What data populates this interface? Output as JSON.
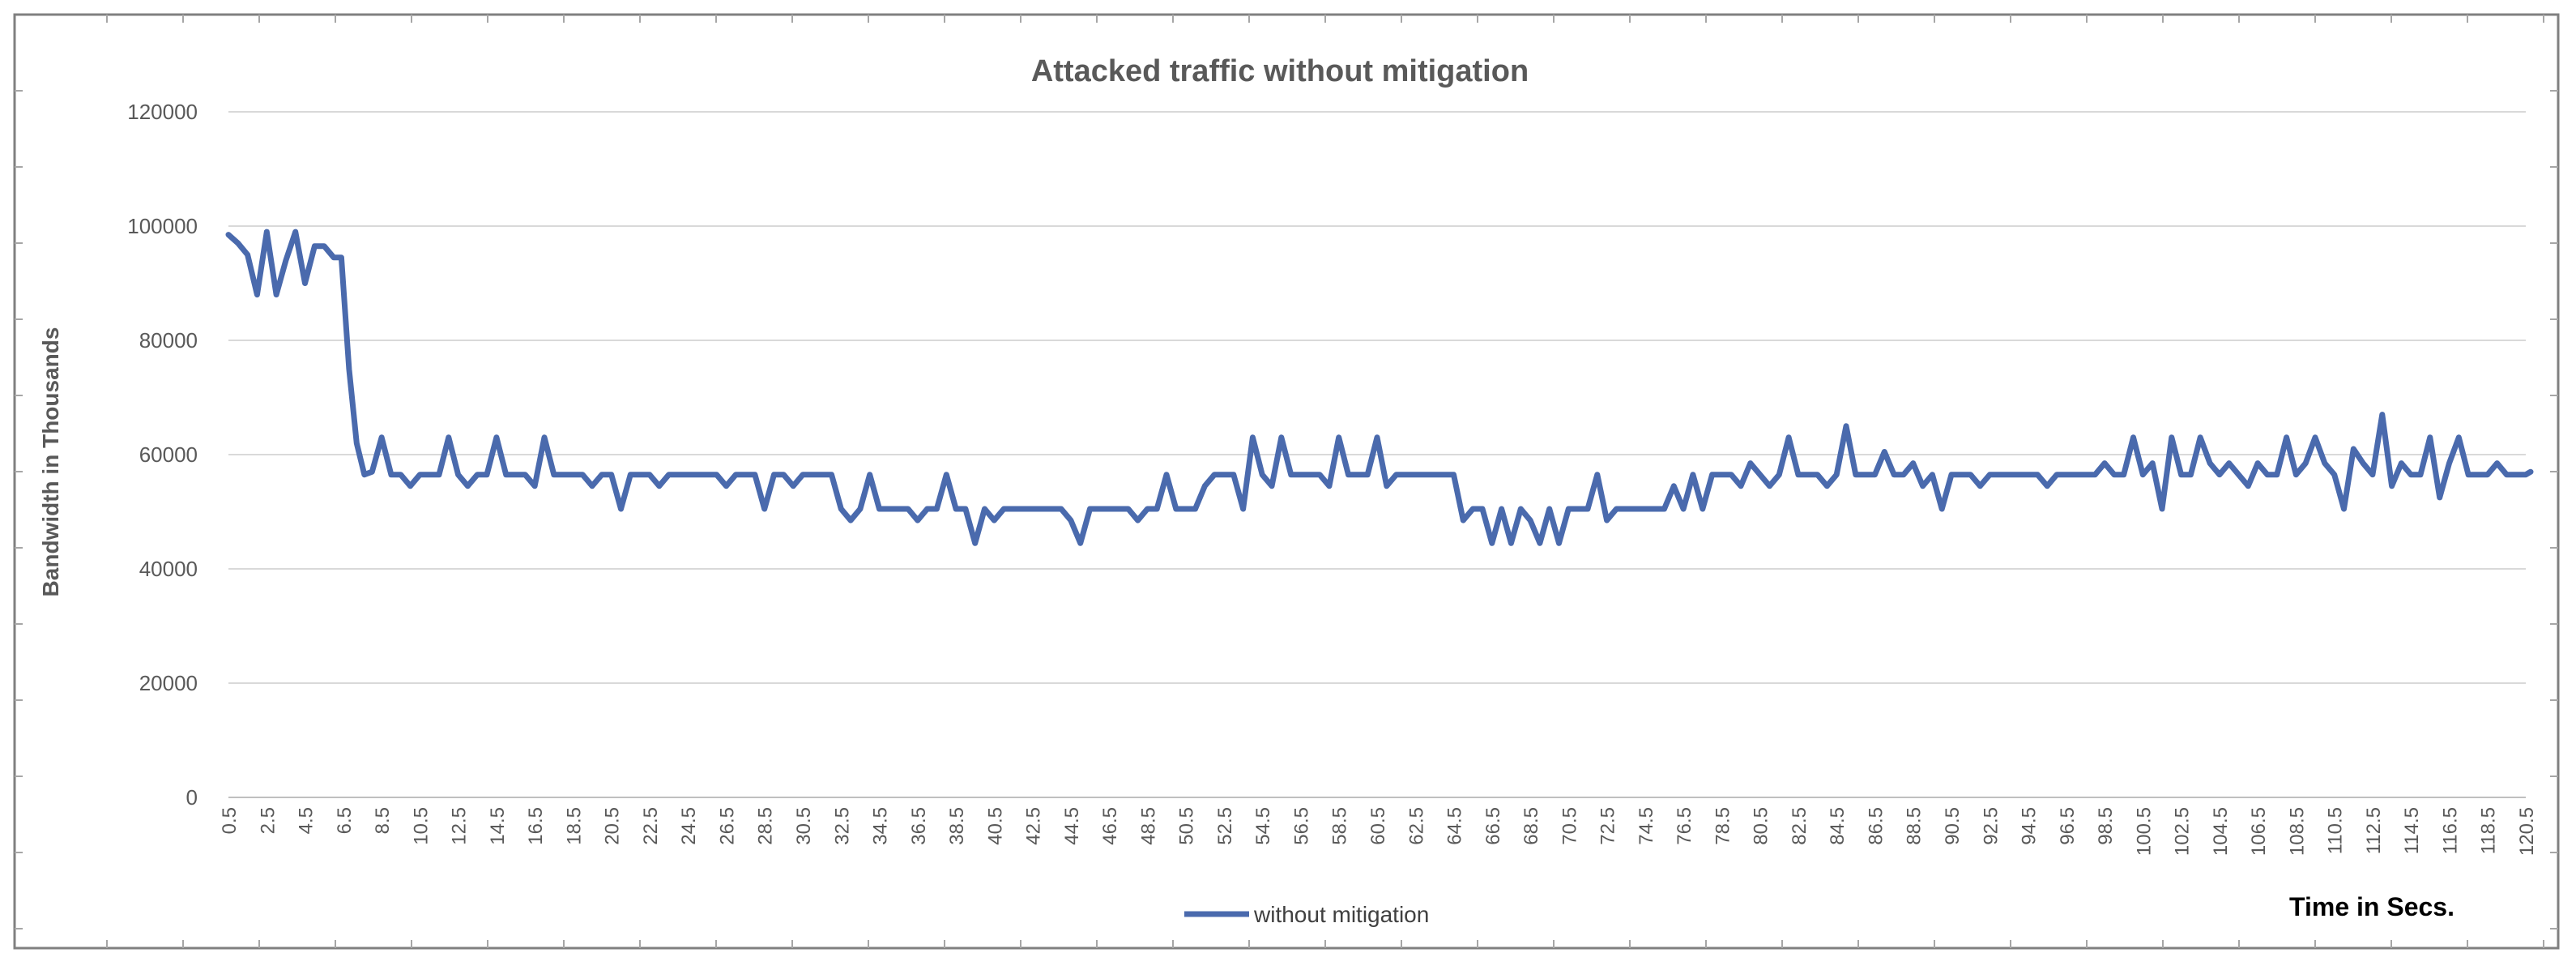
{
  "chart_data": {
    "type": "line",
    "title": "Attacked traffic without mitigation",
    "xlabel": "Time in Secs.",
    "ylabel": "Bandwidth in Thousands",
    "ylim": [
      0,
      120000
    ],
    "yticks": [
      0,
      20000,
      40000,
      60000,
      80000,
      100000,
      120000
    ],
    "grid": true,
    "legend_position": "bottom",
    "x_start": 0.5,
    "x_step": 0.5,
    "x_end": 120.5,
    "x_tick_labels": [
      "0.5",
      "2.5",
      "4.5",
      "6.5",
      "8.5",
      "10.5",
      "12.5",
      "14.5",
      "16.5",
      "18.5",
      "20.5",
      "22.5",
      "24.5",
      "26.5",
      "28.5",
      "30.5",
      "32.5",
      "34.5",
      "36.5",
      "38.5",
      "40.5",
      "42.5",
      "44.5",
      "46.5",
      "48.5",
      "50.5",
      "52.5",
      "54.5",
      "56.5",
      "58.5",
      "60.5",
      "62.5",
      "64.5",
      "66.5",
      "68.5",
      "70.5",
      "72.5",
      "74.5",
      "76.5",
      "78.5",
      "80.5",
      "82.5",
      "84.5",
      "86.5",
      "88.5",
      "90.5",
      "92.5",
      "94.5",
      "96.5",
      "98.5",
      "100.5",
      "102.5",
      "104.5",
      "106.5",
      "108.5",
      "110.5",
      "112.5",
      "114.5",
      "116.5",
      "118.5",
      "120.5"
    ],
    "series": [
      {
        "name": "without mitigation",
        "color": "#4a6aad",
        "anchors": [
          [
            0.5,
            98500
          ],
          [
            1.0,
            97000
          ],
          [
            1.5,
            95000
          ],
          [
            2.0,
            88000
          ],
          [
            2.5,
            99000
          ],
          [
            3.0,
            88000
          ],
          [
            3.5,
            94000
          ],
          [
            4.0,
            99000
          ],
          [
            4.5,
            90000
          ],
          [
            5.0,
            96500
          ],
          [
            5.5,
            96500
          ],
          [
            6.0,
            94500
          ],
          [
            6.4,
            94500
          ],
          [
            6.8,
            75000
          ],
          [
            7.2,
            62000
          ],
          [
            7.6,
            56500
          ],
          [
            8.0,
            57000
          ],
          [
            8.5,
            63000
          ],
          [
            9.0,
            56500
          ],
          [
            9.5,
            56500
          ],
          [
            10.0,
            54500
          ],
          [
            10.5,
            56500
          ],
          [
            11.0,
            56500
          ],
          [
            11.5,
            56500
          ],
          [
            12.0,
            63000
          ],
          [
            12.5,
            56500
          ],
          [
            13.0,
            54500
          ],
          [
            13.5,
            56500
          ],
          [
            14.0,
            56500
          ],
          [
            14.5,
            63000
          ],
          [
            15.0,
            56500
          ],
          [
            15.5,
            56500
          ],
          [
            16.0,
            56500
          ],
          [
            16.5,
            54500
          ],
          [
            17.0,
            63000
          ],
          [
            17.5,
            56500
          ],
          [
            18.0,
            56500
          ],
          [
            18.5,
            56500
          ],
          [
            19.0,
            56500
          ],
          [
            19.5,
            54500
          ],
          [
            20.0,
            56500
          ],
          [
            20.5,
            56500
          ],
          [
            21.0,
            50500
          ],
          [
            21.5,
            56500
          ],
          [
            22.0,
            56500
          ],
          [
            22.5,
            56500
          ],
          [
            23.0,
            54500
          ],
          [
            23.5,
            56500
          ],
          [
            24.0,
            56500
          ],
          [
            24.5,
            56500
          ],
          [
            25.0,
            56500
          ],
          [
            25.5,
            56500
          ],
          [
            26.0,
            56500
          ],
          [
            26.5,
            54500
          ],
          [
            27.0,
            56500
          ],
          [
            27.5,
            56500
          ],
          [
            28.0,
            56500
          ],
          [
            28.5,
            50500
          ],
          [
            29.0,
            56500
          ],
          [
            29.5,
            56500
          ],
          [
            30.0,
            54500
          ],
          [
            30.5,
            56500
          ],
          [
            31.0,
            56500
          ],
          [
            31.5,
            56500
          ],
          [
            32.0,
            56500
          ],
          [
            32.5,
            50500
          ],
          [
            33.0,
            48500
          ],
          [
            33.5,
            50500
          ],
          [
            34.0,
            56500
          ],
          [
            34.5,
            50500
          ],
          [
            35.0,
            50500
          ],
          [
            35.5,
            50500
          ],
          [
            36.0,
            50500
          ],
          [
            36.5,
            48500
          ],
          [
            37.0,
            50500
          ],
          [
            37.5,
            50500
          ],
          [
            38.0,
            56500
          ],
          [
            38.5,
            50500
          ],
          [
            39.0,
            50500
          ],
          [
            39.5,
            44500
          ],
          [
            40.0,
            50500
          ],
          [
            40.5,
            48500
          ],
          [
            41.0,
            50500
          ],
          [
            41.5,
            50500
          ],
          [
            42.0,
            50500
          ],
          [
            42.5,
            50500
          ],
          [
            43.0,
            50500
          ],
          [
            43.5,
            50500
          ],
          [
            44.0,
            50500
          ],
          [
            44.5,
            48500
          ],
          [
            45.0,
            44500
          ],
          [
            45.5,
            50500
          ],
          [
            46.0,
            50500
          ],
          [
            46.5,
            50500
          ],
          [
            47.0,
            50500
          ],
          [
            47.5,
            50500
          ],
          [
            48.0,
            48500
          ],
          [
            48.5,
            50500
          ],
          [
            49.0,
            50500
          ],
          [
            49.5,
            56500
          ],
          [
            50.0,
            50500
          ],
          [
            50.5,
            50500
          ],
          [
            51.0,
            50500
          ],
          [
            51.5,
            54500
          ],
          [
            52.0,
            56500
          ],
          [
            52.5,
            56500
          ],
          [
            53.0,
            56500
          ],
          [
            53.5,
            50500
          ],
          [
            54.0,
            63000
          ],
          [
            54.5,
            56500
          ],
          [
            55.0,
            54500
          ],
          [
            55.5,
            63000
          ],
          [
            56.0,
            56500
          ],
          [
            56.5,
            56500
          ],
          [
            57.0,
            56500
          ],
          [
            57.5,
            56500
          ],
          [
            58.0,
            54500
          ],
          [
            58.5,
            63000
          ],
          [
            59.0,
            56500
          ],
          [
            59.5,
            56500
          ],
          [
            60.0,
            56500
          ],
          [
            60.5,
            63000
          ],
          [
            61.0,
            54500
          ],
          [
            61.5,
            56500
          ],
          [
            62.0,
            56500
          ],
          [
            62.5,
            56500
          ],
          [
            63.0,
            56500
          ],
          [
            63.5,
            56500
          ],
          [
            64.0,
            56500
          ],
          [
            64.5,
            56500
          ],
          [
            65.0,
            48500
          ],
          [
            65.5,
            50500
          ],
          [
            66.0,
            50500
          ],
          [
            66.5,
            44500
          ],
          [
            67.0,
            50500
          ],
          [
            67.5,
            44500
          ],
          [
            68.0,
            50500
          ],
          [
            68.5,
            48500
          ],
          [
            69.0,
            44500
          ],
          [
            69.5,
            50500
          ],
          [
            70.0,
            44500
          ],
          [
            70.5,
            50500
          ],
          [
            71.0,
            50500
          ],
          [
            71.5,
            50500
          ],
          [
            72.0,
            56500
          ],
          [
            72.5,
            48500
          ],
          [
            73.0,
            50500
          ],
          [
            73.5,
            50500
          ],
          [
            74.0,
            50500
          ],
          [
            74.5,
            50500
          ],
          [
            75.0,
            50500
          ],
          [
            75.5,
            50500
          ],
          [
            76.0,
            54500
          ],
          [
            76.5,
            50500
          ],
          [
            77.0,
            56500
          ],
          [
            77.5,
            50500
          ],
          [
            78.0,
            56500
          ],
          [
            78.5,
            56500
          ],
          [
            79.0,
            56500
          ],
          [
            79.5,
            54500
          ],
          [
            80.0,
            58500
          ],
          [
            80.5,
            56500
          ],
          [
            81.0,
            54500
          ],
          [
            81.5,
            56500
          ],
          [
            82.0,
            63000
          ],
          [
            82.5,
            56500
          ],
          [
            83.0,
            56500
          ],
          [
            83.5,
            56500
          ],
          [
            84.0,
            54500
          ],
          [
            84.5,
            56500
          ],
          [
            85.0,
            65000
          ],
          [
            85.5,
            56500
          ],
          [
            86.0,
            56500
          ],
          [
            86.5,
            56500
          ],
          [
            87.0,
            60500
          ],
          [
            87.5,
            56500
          ],
          [
            88.0,
            56500
          ],
          [
            88.5,
            58500
          ],
          [
            89.0,
            54500
          ],
          [
            89.5,
            56500
          ],
          [
            90.0,
            50500
          ],
          [
            90.5,
            56500
          ],
          [
            91.0,
            56500
          ],
          [
            91.5,
            56500
          ],
          [
            92.0,
            54500
          ],
          [
            92.5,
            56500
          ],
          [
            93.0,
            56500
          ],
          [
            93.5,
            56500
          ],
          [
            94.0,
            56500
          ],
          [
            94.5,
            56500
          ],
          [
            95.0,
            56500
          ],
          [
            95.5,
            54500
          ],
          [
            96.0,
            56500
          ],
          [
            96.5,
            56500
          ],
          [
            97.0,
            56500
          ],
          [
            97.5,
            56500
          ],
          [
            98.0,
            56500
          ],
          [
            98.5,
            58500
          ],
          [
            99.0,
            56500
          ],
          [
            99.5,
            56500
          ],
          [
            100.0,
            63000
          ],
          [
            100.5,
            56500
          ],
          [
            101.0,
            58500
          ],
          [
            101.5,
            50500
          ],
          [
            102.0,
            63000
          ],
          [
            102.5,
            56500
          ],
          [
            103.0,
            56500
          ],
          [
            103.5,
            63000
          ],
          [
            104.0,
            58500
          ],
          [
            104.5,
            56500
          ],
          [
            105.0,
            58500
          ],
          [
            105.5,
            56500
          ],
          [
            106.0,
            54500
          ],
          [
            106.5,
            58500
          ],
          [
            107.0,
            56500
          ],
          [
            107.5,
            56500
          ],
          [
            108.0,
            63000
          ],
          [
            108.5,
            56500
          ],
          [
            109.0,
            58500
          ],
          [
            109.5,
            63000
          ],
          [
            110.0,
            58500
          ],
          [
            110.5,
            56500
          ],
          [
            111.0,
            50500
          ],
          [
            111.5,
            61000
          ],
          [
            112.0,
            58500
          ],
          [
            112.5,
            56500
          ],
          [
            113.0,
            67000
          ],
          [
            113.5,
            54500
          ],
          [
            114.0,
            58500
          ],
          [
            114.5,
            56500
          ],
          [
            115.0,
            56500
          ],
          [
            115.5,
            63000
          ],
          [
            116.0,
            52500
          ],
          [
            116.5,
            58500
          ],
          [
            117.0,
            63000
          ],
          [
            117.5,
            56500
          ],
          [
            118.0,
            56500
          ],
          [
            118.5,
            56500
          ],
          [
            119.0,
            58500
          ],
          [
            119.5,
            56500
          ],
          [
            120.0,
            56500
          ],
          [
            120.5,
            56500
          ],
          [
            121.0,
            57000
          ]
        ]
      }
    ]
  }
}
